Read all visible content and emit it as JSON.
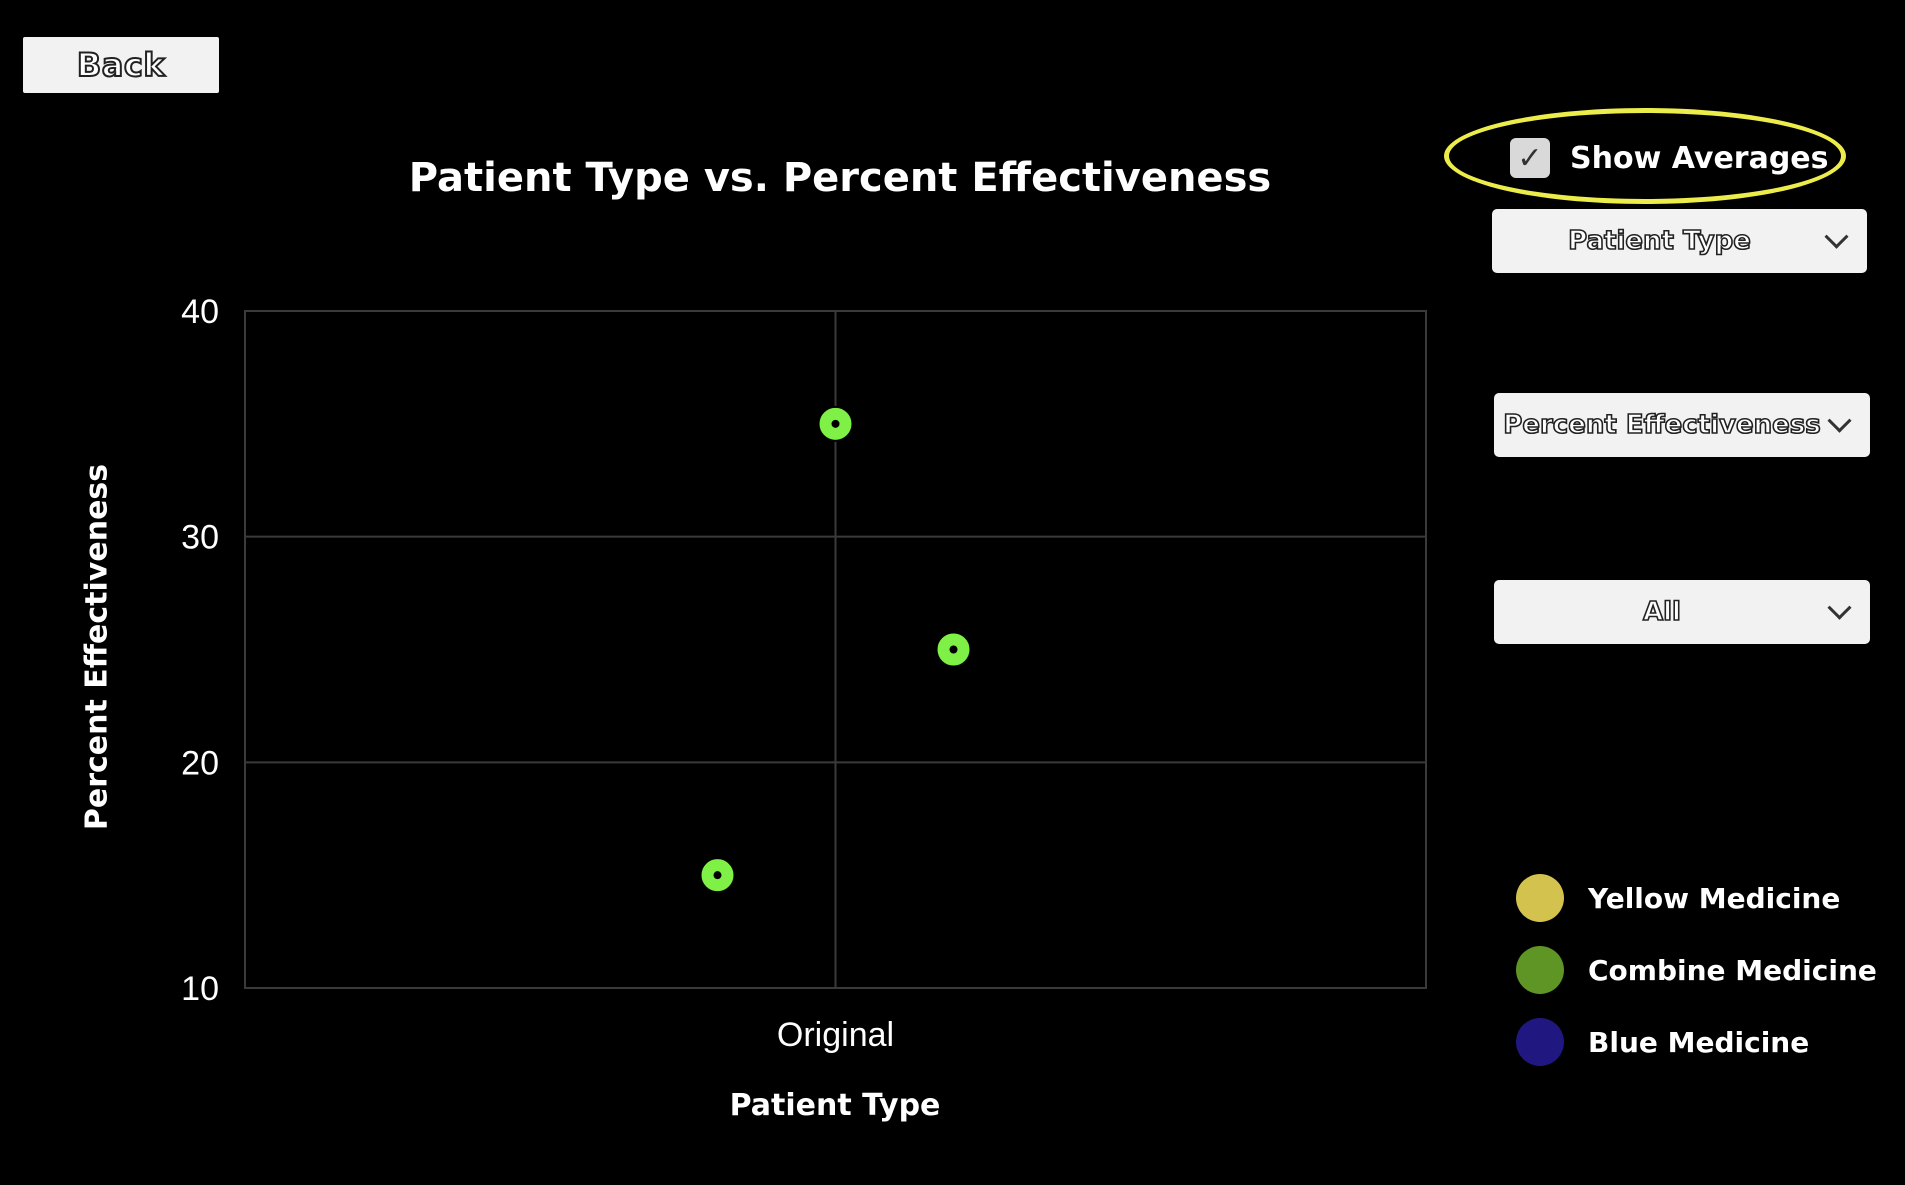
{
  "back_label": "Back",
  "controls": {
    "show_averages_label": "Show Averages",
    "show_averages_checked": true,
    "x_select": "Patient Type",
    "y_select": "Percent Effectiveness",
    "filter_select": "All",
    "highlight_color": "#ecec4a"
  },
  "legend": [
    {
      "label": "Yellow Medicine",
      "color": "#d4c24e"
    },
    {
      "label": "Combine Medicine",
      "color": "#5e9524"
    },
    {
      "label": "Blue Medicine",
      "color": "#201880"
    }
  ],
  "chart_data": {
    "type": "scatter",
    "title": "Patient Type vs. Percent Effectiveness",
    "xlabel": "Patient Type",
    "ylabel": "Percent Effectiveness",
    "categories": [
      "Original"
    ],
    "ylim": [
      10,
      40
    ],
    "yticks": [
      10,
      20,
      30,
      40
    ],
    "grid": true,
    "point_color": "#7ef046",
    "points": [
      {
        "category": "Original",
        "y": 15
      },
      {
        "category": "Original",
        "y": 35
      },
      {
        "category": "Original",
        "y": 25
      }
    ]
  }
}
